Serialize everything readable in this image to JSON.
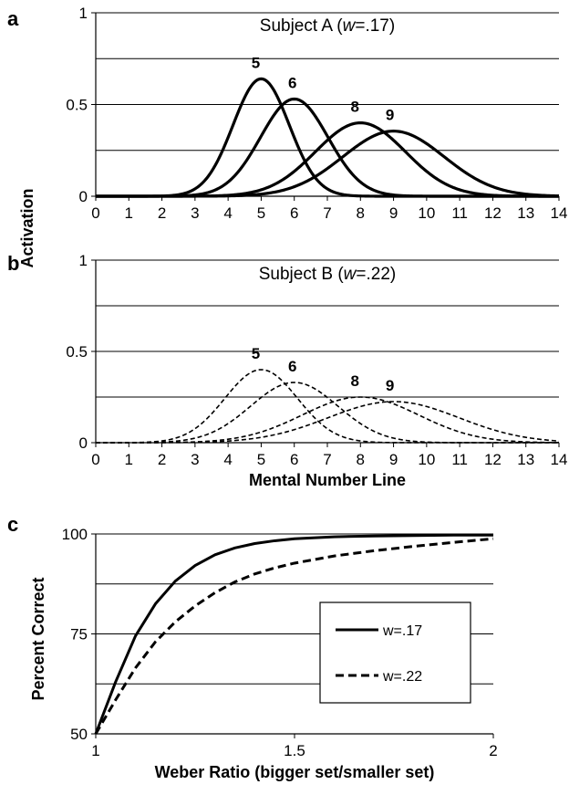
{
  "chart_data": [
    {
      "panel": "a",
      "type": "line",
      "annotation": {
        "prefix": "Subject A (",
        "w": "w",
        "value": "=.17)"
      },
      "ylabel": "Activation",
      "xlim": [
        0,
        14
      ],
      "ylim": [
        0,
        1
      ],
      "x_ticks": [
        "0",
        "1",
        "2",
        "3",
        "4",
        "5",
        "6",
        "7",
        "8",
        "9",
        "10",
        "11",
        "12",
        "13",
        "14"
      ],
      "y_ticks": [
        "0",
        "0.5",
        "1"
      ],
      "weber_fraction": 0.17,
      "series": [
        {
          "name": "5",
          "mean": 5,
          "peak": 0.64
        },
        {
          "name": "6",
          "mean": 6,
          "peak": 0.53
        },
        {
          "name": "8",
          "mean": 8,
          "peak": 0.4
        },
        {
          "name": "9",
          "mean": 9,
          "peak": 0.355
        }
      ]
    },
    {
      "panel": "b",
      "type": "line",
      "annotation": {
        "prefix": "Subject B (",
        "w": "w",
        "value": "=.22)"
      },
      "xlabel": "Mental Number Line",
      "xlim": [
        0,
        14
      ],
      "ylim": [
        0,
        1
      ],
      "x_ticks": [
        "0",
        "1",
        "2",
        "3",
        "4",
        "5",
        "6",
        "7",
        "8",
        "9",
        "10",
        "11",
        "12",
        "13",
        "14"
      ],
      "y_ticks": [
        "0",
        "0.5",
        "1"
      ],
      "weber_fraction": 0.22,
      "series": [
        {
          "name": "5",
          "mean": 5,
          "peak": 0.4
        },
        {
          "name": "6",
          "mean": 6,
          "peak": 0.33
        },
        {
          "name": "8",
          "mean": 8,
          "peak": 0.25
        },
        {
          "name": "9",
          "mean": 9,
          "peak": 0.225
        }
      ]
    },
    {
      "panel": "c",
      "type": "line",
      "xlabel": "Weber Ratio (bigger set/smaller set)",
      "ylabel": "Percent Correct",
      "xlim": [
        1,
        2
      ],
      "ylim": [
        50,
        100
      ],
      "x_ticks": [
        "1",
        "1.5",
        "2"
      ],
      "y_ticks": [
        "50",
        "75",
        "100"
      ],
      "legend": {
        "placement": "right"
      },
      "series": [
        {
          "name": "w=.17",
          "style": "solid",
          "x": [
            1,
            1.05,
            1.1,
            1.15,
            1.2,
            1.25,
            1.3,
            1.35,
            1.4,
            1.45,
            1.5,
            1.6,
            1.7,
            1.8,
            1.9,
            2.0
          ],
          "y": [
            50,
            63.0,
            74.5,
            82.5,
            88.2,
            92.1,
            94.8,
            96.5,
            97.6,
            98.3,
            98.8,
            99.3,
            99.5,
            99.6,
            99.7,
            99.7
          ]
        },
        {
          "name": "w=.22",
          "style": "dashed",
          "x": [
            1,
            1.05,
            1.1,
            1.15,
            1.2,
            1.25,
            1.3,
            1.35,
            1.4,
            1.45,
            1.5,
            1.6,
            1.7,
            1.8,
            1.9,
            2.0
          ],
          "y": [
            50,
            58.5,
            66.5,
            73.0,
            78.0,
            82.0,
            85.3,
            88.0,
            90.0,
            91.5,
            92.7,
            94.5,
            95.8,
            96.9,
            97.9,
            98.8
          ]
        }
      ]
    }
  ]
}
